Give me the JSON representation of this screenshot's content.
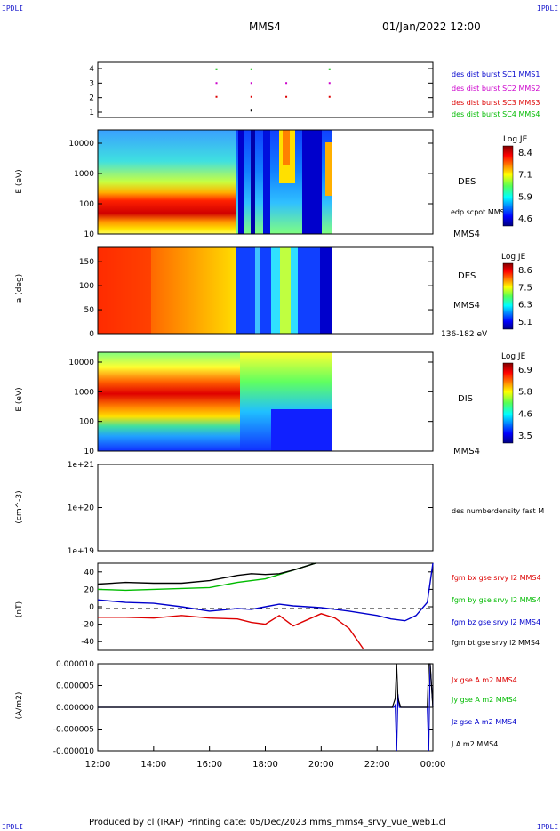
{
  "corner_label": "IPDLI",
  "header": {
    "spacecraft": "MMS4",
    "datetime": "01/Jan/2022 12:00"
  },
  "footer": "Produced by cl (IRAP)   Printing date: 05/Dec/2023   mms_mms4_srvy_vue_web1.cl",
  "colors": {
    "blue": "#0000cc",
    "magenta": "#cc00cc",
    "red": "#dd0000",
    "green": "#00bb00",
    "black": "#000000"
  },
  "chart_data": [
    {
      "type": "scatter",
      "panel": "burst_availability",
      "yticks": [
        "1",
        "2",
        "3",
        "4"
      ],
      "ylim": [
        0.5,
        4.5
      ],
      "legend": [
        {
          "name": "des dist burst SC1 MMS1",
          "color": "#0000cc"
        },
        {
          "name": "des dist burst SC2 MMS2",
          "color": "#cc00cc"
        },
        {
          "name": "des dist burst SC3 MMS3",
          "color": "#dd0000"
        },
        {
          "name": "des dist burst SC4 MMS4",
          "color": "#00bb00"
        }
      ],
      "markers": [
        {
          "t": 16.25,
          "y": 4,
          "color": "#00bb00"
        },
        {
          "t": 17.5,
          "y": 4,
          "color": "#00bb00"
        },
        {
          "t": 20.3,
          "y": 4,
          "color": "#00bb00"
        },
        {
          "t": 16.25,
          "y": 3,
          "color": "#cc00cc"
        },
        {
          "t": 17.5,
          "y": 3,
          "color": "#cc00cc"
        },
        {
          "t": 18.75,
          "y": 3,
          "color": "#cc00cc"
        },
        {
          "t": 20.3,
          "y": 3,
          "color": "#cc00cc"
        },
        {
          "t": 16.25,
          "y": 2,
          "color": "#dd0000"
        },
        {
          "t": 17.5,
          "y": 2,
          "color": "#dd0000"
        },
        {
          "t": 18.75,
          "y": 2,
          "color": "#dd0000"
        },
        {
          "t": 20.3,
          "y": 2,
          "color": "#dd0000"
        },
        {
          "t": 17.5,
          "y": 1,
          "color": "#000000"
        }
      ]
    },
    {
      "type": "heatmap",
      "panel": "des_energy",
      "ylabel": "E (eV)",
      "yscale": "log",
      "yticks": [
        "10",
        "100",
        "1000",
        "10000"
      ],
      "label": "DES",
      "sublabel": "edp scpot MMS4",
      "footlabel": "MMS4",
      "colorbar": {
        "title": "Log JE",
        "ticks": [
          "8.4",
          "7.1",
          "5.9",
          "4.6"
        ]
      },
      "data_end": 20.4
    },
    {
      "type": "heatmap",
      "panel": "des_pitch",
      "ylabel": "a (deg)",
      "yticks": [
        "0",
        "50",
        "100",
        "150"
      ],
      "ylim": [
        0,
        180
      ],
      "label": "DES",
      "sublabel": "MMS4",
      "footlabel": "136-182 eV",
      "colorbar": {
        "title": "Log JE",
        "ticks": [
          "8.6",
          "7.5",
          "6.3",
          "5.1"
        ]
      },
      "data_end": 20.4
    },
    {
      "type": "heatmap",
      "panel": "dis_energy",
      "ylabel": "E (eV)",
      "yscale": "log",
      "yticks": [
        "10",
        "100",
        "1000",
        "10000"
      ],
      "label": "DIS",
      "footlabel": "MMS4",
      "colorbar": {
        "title": "Log JE",
        "ticks": [
          "6.9",
          "5.8",
          "4.6",
          "3.5"
        ]
      },
      "data_end": 20.4
    },
    {
      "type": "line",
      "panel": "density",
      "ylabel": "(cm^-3)",
      "yscale": "log",
      "yticks": [
        "1e+19",
        "1e+20",
        "1e+21"
      ],
      "legend": [
        {
          "name": "des numberdensity fast M",
          "color": "#000000"
        }
      ],
      "series": []
    },
    {
      "type": "line",
      "panel": "magnetic_field",
      "ylabel": "(nT)",
      "ylim": [
        -50,
        50
      ],
      "yticks": [
        "-40",
        "-20",
        "0",
        "20",
        "40"
      ],
      "legend": [
        {
          "name": "fgm bx gse srvy l2 MMS4",
          "color": "#dd0000"
        },
        {
          "name": "fgm by gse srvy l2 MMS4",
          "color": "#00bb00"
        },
        {
          "name": "fgm bz gse srvy l2 MMS4",
          "color": "#0000cc"
        },
        {
          "name": "fgm bt gse srvy l2 MMS4",
          "color": "#000000"
        }
      ],
      "series": [
        {
          "name": "fgm bx gse srvy l2 MMS4",
          "color": "#dd0000",
          "t": [
            12,
            13,
            14,
            15,
            16,
            17,
            17.5,
            18,
            18.5,
            19,
            19.5,
            20,
            20.5,
            21,
            21.5
          ],
          "values": [
            -12,
            -12,
            -13,
            -10,
            -13,
            -14,
            -18,
            -20,
            -10,
            -22,
            -15,
            -8,
            -13,
            -25,
            -48
          ]
        },
        {
          "name": "fgm by gse srvy l2 MMS4",
          "color": "#00bb00",
          "t": [
            12,
            13,
            14,
            15,
            16,
            17,
            17.5,
            18,
            18.5,
            19,
            19.5,
            19.8
          ],
          "values": [
            20,
            19,
            20,
            21,
            22,
            28,
            30,
            32,
            37,
            42,
            47,
            50
          ]
        },
        {
          "name": "fgm bz gse srvy l2 MMS4",
          "color": "#0000cc",
          "t": [
            12,
            13,
            14,
            15,
            16,
            17,
            17.5,
            18,
            18.5,
            19,
            20,
            21,
            22,
            22.5,
            23,
            23.4,
            23.8,
            24
          ],
          "values": [
            8,
            5,
            4,
            0,
            -5,
            -2,
            -3,
            0,
            3,
            1,
            -1,
            -5,
            -10,
            -14,
            -16,
            -10,
            5,
            50
          ]
        },
        {
          "name": "fgm bt gse srvy l2 MMS4",
          "color": "#000000",
          "t": [
            12,
            13,
            14,
            15,
            16,
            17,
            17.5,
            18,
            18.5,
            19,
            19.5,
            19.8
          ],
          "values": [
            26,
            28,
            27,
            27,
            30,
            36,
            38,
            37,
            38,
            42,
            47,
            50
          ]
        }
      ]
    },
    {
      "type": "line",
      "panel": "current_density",
      "ylabel": "(A/m2)",
      "ylim": [
        -1e-05,
        1e-05
      ],
      "yticks": [
        "-0.000010",
        "-0.000005",
        "0.000000",
        "0.000005",
        "0.000010"
      ],
      "legend": [
        {
          "name": "Jx gse A m2 MMS4",
          "color": "#dd0000"
        },
        {
          "name": "Jy gse A m2 MMS4",
          "color": "#00bb00"
        },
        {
          "name": "Jz gse A m2 MMS4",
          "color": "#0000cc"
        },
        {
          "name": "J A m2 MMS4",
          "color": "#000000"
        }
      ],
      "series": [
        {
          "name": "Jz gse A m2 MMS4",
          "color": "#0000cc",
          "t": [
            12,
            22.6,
            22.65,
            22.7,
            22.75,
            22.8,
            23.8,
            23.85,
            23.9,
            24
          ],
          "values": [
            0,
            0,
            5e-07,
            -1e-05,
            3e-06,
            0,
            0,
            -1e-05,
            1e-05,
            0
          ]
        },
        {
          "name": "J A m2 MMS4",
          "color": "#000000",
          "t": [
            12,
            22.55,
            22.65,
            22.7,
            22.75,
            22.85,
            23.8,
            23.85,
            23.9,
            24
          ],
          "values": [
            0,
            0,
            2e-06,
            1e-05,
            2e-06,
            0,
            0,
            1e-05,
            1e-05,
            0
          ]
        }
      ],
      "xlabels": [
        "12:00",
        "14:00",
        "16:00",
        "18:00",
        "20:00",
        "22:00",
        "00:00"
      ],
      "xlim": [
        12,
        24
      ]
    }
  ]
}
